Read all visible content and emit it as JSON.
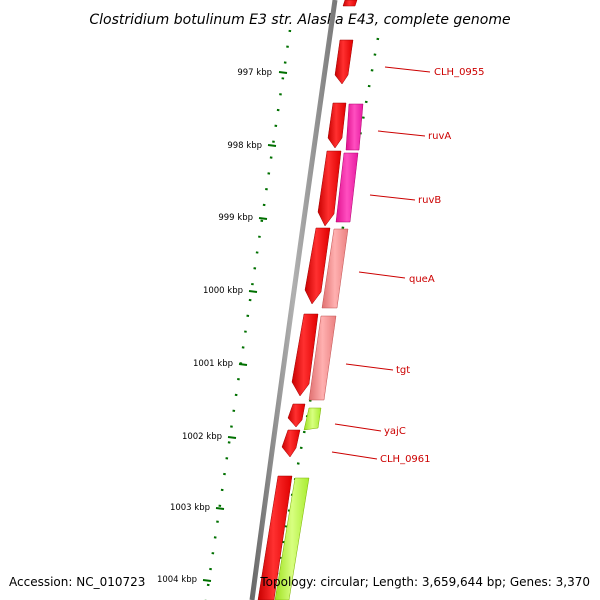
{
  "title": "Clostridium botulinum E3 str. Alaska E43, complete genome",
  "footer": {
    "accession": "Accession: NC_010723",
    "summary": "Topology: circular; Length: 3,659,644 bp; Genes: 3,370"
  },
  "scale_labels": [
    "997 kbp",
    "998 kbp",
    "999 kbp",
    "1000 kbp",
    "1001 kbp",
    "1002 kbp",
    "1003 kbp",
    "1004 kbp"
  ],
  "colors": {
    "backbone": "#888888",
    "gene_strand_outer": "#ff0000",
    "ruvA": "#ff1aa8",
    "ruvB": "#e6109a",
    "queA": "#f28c8c",
    "tgt": "#f28c8c",
    "yajC": "#b6ff3c",
    "lower_green": "#b6ff3c",
    "tick": "#007000",
    "gene_label": "#cc0000"
  },
  "genes": [
    {
      "id": "CLH_0955",
      "label": "CLH_0955"
    },
    {
      "id": "ruvA",
      "label": "ruvA"
    },
    {
      "id": "ruvB",
      "label": "ruvB"
    },
    {
      "id": "queA",
      "label": "queA"
    },
    {
      "id": "tgt",
      "label": "tgt"
    },
    {
      "id": "yajC",
      "label": "yajC"
    },
    {
      "id": "CLH_0961",
      "label": "CLH_0961"
    }
  ]
}
